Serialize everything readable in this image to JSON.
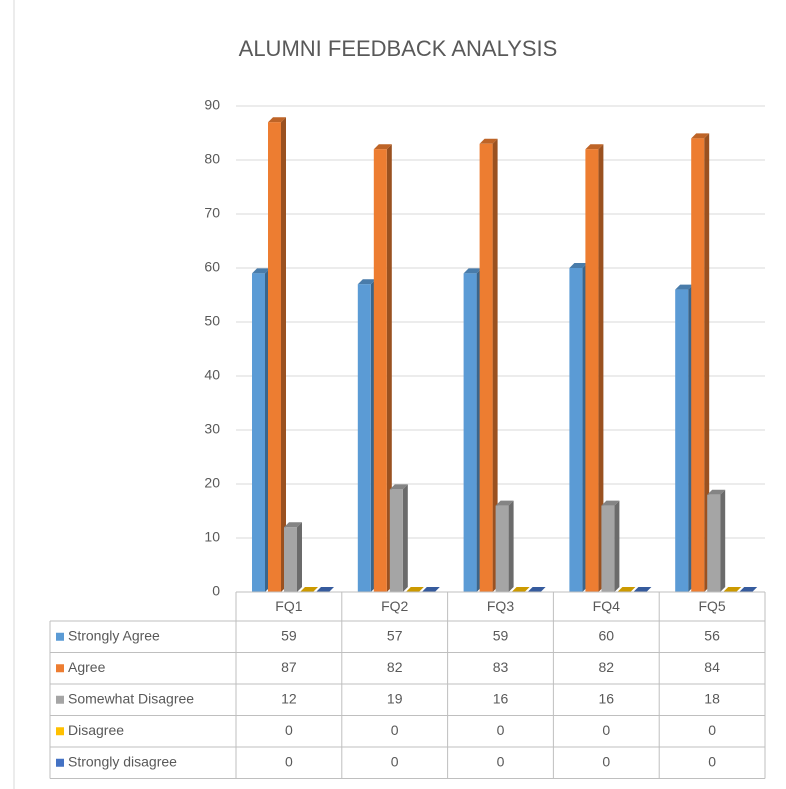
{
  "chart_data": {
    "type": "bar3d",
    "title": "ALUMNI FEEDBACK ANALYSIS",
    "categories": [
      "FQ1",
      "FQ2",
      "FQ3",
      "FQ4",
      "FQ5"
    ],
    "series": [
      {
        "name": "Strongly Agree",
        "color": "#5b9bd5",
        "values": [
          59,
          57,
          59,
          60,
          56
        ]
      },
      {
        "name": "Agree",
        "color": "#ed7d31",
        "values": [
          87,
          82,
          83,
          82,
          84
        ]
      },
      {
        "name": "Somewhat Disagree",
        "color": "#a5a5a5",
        "values": [
          12,
          19,
          16,
          16,
          18
        ]
      },
      {
        "name": "Disagree",
        "color": "#ffc000",
        "values": [
          0,
          0,
          0,
          0,
          0
        ]
      },
      {
        "name": "Strongly disagree",
        "color": "#4472c4",
        "values": [
          0,
          0,
          0,
          0,
          0
        ]
      }
    ],
    "ylim": [
      0,
      90
    ],
    "yticks": [
      0,
      10,
      20,
      30,
      40,
      50,
      60,
      70,
      80,
      90
    ],
    "grid": true,
    "data_table": true
  }
}
